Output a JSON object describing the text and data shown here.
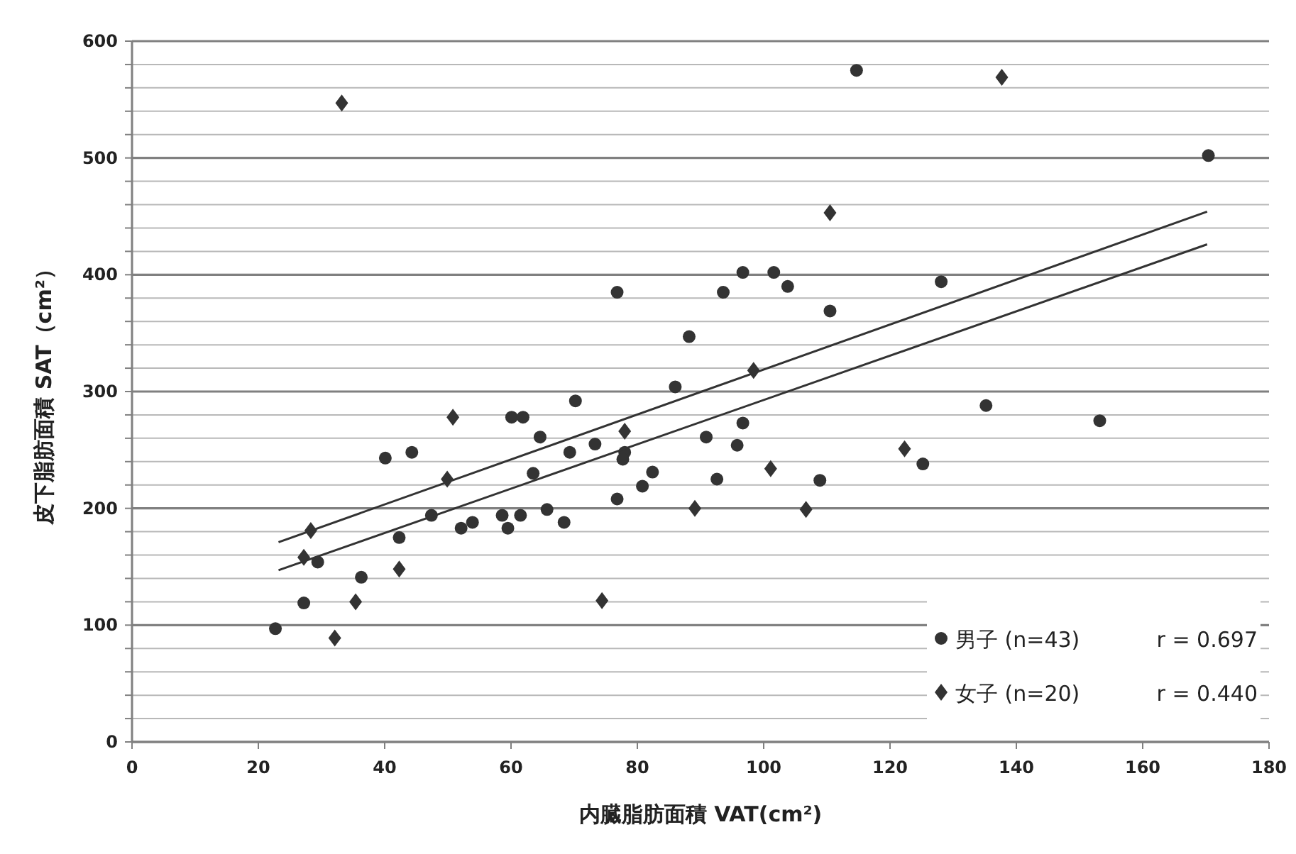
{
  "chart_data": {
    "type": "scatter",
    "xlabel": "内臓脂肪面積 VAT(cm²)",
    "ylabel": "皮下脂肪面積 SAT（cm²）",
    "xlim": [
      0,
      180
    ],
    "xticks": [
      0,
      20,
      40,
      60,
      80,
      100,
      120,
      140,
      160,
      180
    ],
    "ylim": [
      0,
      600
    ],
    "yticks": [
      0,
      {
        "value": 20,
        "label": null
      },
      {
        "value": 40,
        "label": null
      },
      {
        "value": 60,
        "label": null
      },
      {
        "value": 80,
        "label": null
      },
      100,
      {
        "value": 120,
        "label": null
      },
      {
        "value": 140,
        "label": null
      },
      {
        "value": 160,
        "label": null
      },
      {
        "value": 180,
        "label": null
      },
      200,
      {
        "value": 220,
        "label": null
      },
      {
        "value": 240,
        "label": null
      },
      {
        "value": 260,
        "label": null
      },
      {
        "value": 280,
        "label": null
      },
      300,
      {
        "value": 320,
        "label": null
      },
      {
        "value": 340,
        "label": null
      },
      {
        "value": 360,
        "label": null
      },
      {
        "value": 380,
        "label": null
      },
      400,
      {
        "value": 420,
        "label": null
      },
      {
        "value": 440,
        "label": null
      },
      {
        "value": 460,
        "label": null
      },
      {
        "value": 480,
        "label": null
      },
      500,
      {
        "value": 520,
        "label": null
      },
      {
        "value": 540,
        "label": null
      },
      {
        "value": 560,
        "label": null
      },
      {
        "value": 580,
        "label": null
      },
      600
    ],
    "grid": "y",
    "legend": "bottom right",
    "annotations": [
      "r = 0.697",
      "r = 0.440"
    ],
    "series": [
      {
        "name": "男子 (n=43)",
        "type": "scatter",
        "marker": "circle",
        "color": "#333333",
        "x": [
          114.7,
          170.4,
          96.7,
          101.6,
          103.8,
          93.6,
          128.1,
          110.5,
          88.2,
          86.0,
          135.2,
          96.7,
          153.2,
          76.8,
          70.2,
          60.1,
          61.9,
          64.6,
          40.1,
          44.3,
          63.5,
          69.3,
          73.3,
          78.0,
          77.7,
          76.8,
          80.8,
          47.4,
          52.1,
          53.9,
          58.6,
          59.5,
          61.5,
          65.7,
          68.4,
          42.3,
          29.4,
          36.3,
          27.2,
          22.7,
          90.9,
          95.8,
          82.4,
          92.6,
          108.9,
          125.2
        ],
        "values": [
          575,
          502,
          402,
          402,
          390,
          385,
          394,
          369,
          347,
          304,
          288,
          273,
          275,
          385,
          292,
          278,
          278,
          261,
          243,
          248,
          230,
          248,
          255,
          248,
          242,
          208,
          219,
          194,
          183,
          188,
          194,
          183,
          194,
          199,
          188,
          175,
          154,
          141,
          119,
          97,
          261,
          254,
          231,
          225,
          224,
          238
        ]
      },
      {
        "name": "女子 (n=20)",
        "type": "scatter",
        "marker": "diamond",
        "color": "#333333",
        "x": [
          33.2,
          137.7,
          110.5,
          98.4,
          50.8,
          49.9,
          78.0,
          28.3,
          27.2,
          42.3,
          35.4,
          32.1,
          74.4,
          101.1,
          89.1,
          106.7,
          122.3
        ],
        "values": [
          547,
          569,
          453,
          318,
          278,
          225,
          266,
          181,
          158,
          148,
          120,
          89,
          121,
          234,
          200,
          199,
          251
        ]
      },
      {
        "type": "line",
        "color": "#333333",
        "x": [
          23.2,
          170.2
        ],
        "values": [
          147,
          426
        ]
      },
      {
        "type": "line",
        "color": "#333333",
        "x": [
          23.2,
          170.2
        ],
        "values": [
          171,
          454
        ]
      }
    ]
  }
}
